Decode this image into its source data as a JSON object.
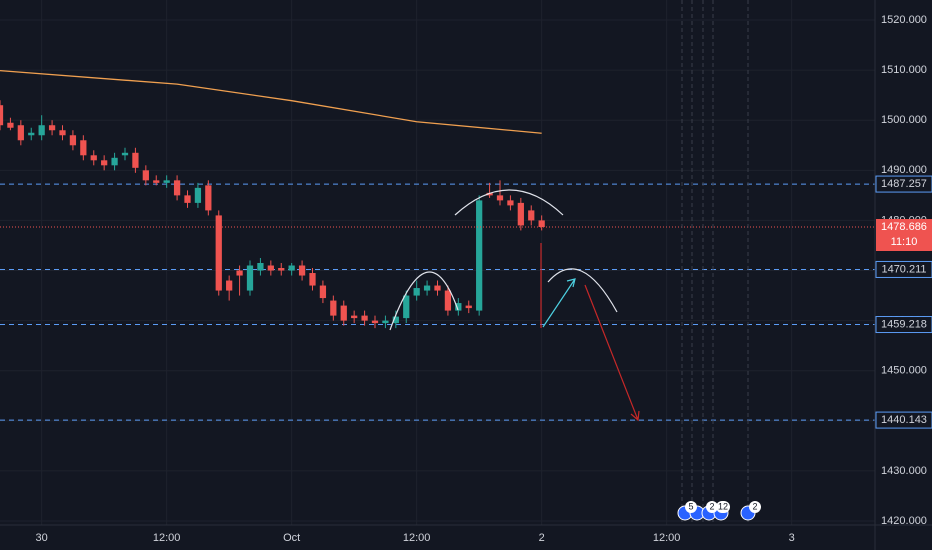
{
  "chart_data": {
    "type": "candlestick",
    "x": [
      -4,
      -3,
      -2,
      -1,
      0,
      1,
      2,
      3,
      4,
      5,
      6,
      7,
      8,
      9,
      10,
      11,
      12,
      13,
      14,
      15,
      16,
      17,
      18,
      19,
      20,
      21,
      22,
      23,
      24,
      25,
      26,
      27,
      28,
      29,
      30,
      31,
      32,
      33,
      34,
      35,
      36,
      37,
      38,
      39,
      40,
      41,
      42,
      43,
      44,
      45,
      46,
      47,
      48
    ],
    "open": [
      1503,
      1499.5,
      1499,
      1497,
      1497,
      1499,
      1498,
      1497,
      1496,
      1493,
      1492,
      1491,
      1493,
      1493.5,
      1490,
      1488,
      1487.5,
      1488,
      1485,
      1483.5,
      1487,
      1481,
      1468,
      1470,
      1466,
      1470,
      1471,
      1470.5,
      1470,
      1471,
      1469.5,
      1467,
      1464,
      1463,
      1461,
      1461,
      1460,
      1459.5,
      1459.5,
      1460.5,
      1465,
      1466,
      1467,
      1466,
      1462,
      1463,
      1462,
      1485.5,
      1485,
      1484,
      1483.5,
      1482,
      1480
    ],
    "high": [
      1504,
      1500.5,
      1500,
      1498.5,
      1501,
      1500,
      1499,
      1498,
      1497,
      1494,
      1493,
      1493.5,
      1494.5,
      1494.5,
      1491,
      1489,
      1489,
      1489,
      1486,
      1487.5,
      1488,
      1482,
      1469,
      1471,
      1472,
      1472.5,
      1472,
      1471.5,
      1471.5,
      1472,
      1470.5,
      1468,
      1465,
      1464,
      1462,
      1462,
      1461,
      1461,
      1462,
      1466,
      1468,
      1468,
      1468,
      1467,
      1464.5,
      1464,
      1485,
      1487.5,
      1488,
      1485,
      1484.5,
      1483,
      1481
    ],
    "low": [
      1498,
      1498,
      1495,
      1496,
      1496,
      1497,
      1496,
      1494,
      1492,
      1491,
      1490,
      1490,
      1492,
      1489.5,
      1487,
      1487,
      1486.5,
      1484,
      1482.5,
      1482.5,
      1481,
      1465,
      1464,
      1465,
      1465,
      1469,
      1469,
      1469,
      1469,
      1468,
      1466,
      1463.5,
      1460,
      1459,
      1459.5,
      1459,
      1458.5,
      1458.5,
      1458.5,
      1459.5,
      1464,
      1465,
      1465,
      1461,
      1461,
      1461.5,
      1461,
      1484.5,
      1483,
      1482,
      1478,
      1479,
      1478
    ],
    "close": [
      1499,
      1498.5,
      1496,
      1497.5,
      1499,
      1498,
      1497,
      1495,
      1493,
      1492,
      1491,
      1492.5,
      1493.5,
      1490.5,
      1488,
      1487.5,
      1488,
      1485,
      1483.5,
      1486.5,
      1482,
      1466,
      1466,
      1469,
      1471,
      1471.5,
      1470,
      1470,
      1471,
      1469,
      1467,
      1464.5,
      1461,
      1460,
      1460.5,
      1460,
      1459.5,
      1460,
      1460.8,
      1465,
      1466.5,
      1467,
      1466,
      1462,
      1463.5,
      1462.5,
      1484,
      1485,
      1484,
      1483,
      1479,
      1480,
      1478.686
    ],
    "ma_x": [
      -4,
      13,
      24,
      36,
      48
    ],
    "ma": [
      1509.9,
      1507.2,
      1503.9,
      1499.7,
      1497.4
    ],
    "ma_color": "#f0a050",
    "up_color": "#26a69a",
    "down_color": "#ef5350",
    "price_lines": [
      1487.257,
      1470.211,
      1459.218,
      1440.143
    ],
    "last_price": 1478.686,
    "countdown": "11:10",
    "events": [
      "5",
      "2",
      "12",
      "2"
    ],
    "xlim": [
      -4,
      80
    ],
    "ylim": [
      1419.2,
      1524
    ],
    "xticks": [
      {
        "value": 0,
        "label": "30"
      },
      {
        "value": 12,
        "label": "12:00"
      },
      {
        "value": 24,
        "label": "Oct"
      },
      {
        "value": 36,
        "label": "12:00"
      },
      {
        "value": 48,
        "label": "2"
      },
      {
        "value": 60,
        "label": "12:00"
      },
      {
        "value": 72,
        "label": "3"
      }
    ],
    "yticks": [
      {
        "value": 1420,
        "label": "1420.000"
      },
      {
        "value": 1430,
        "label": "1430.000"
      },
      {
        "value": 1440,
        "label": "1440.000"
      },
      {
        "value": 1450,
        "label": "1450.000"
      },
      {
        "value": 1460,
        "label": "1460.000"
      },
      {
        "value": 1470,
        "label": "1470.000"
      },
      {
        "value": 1480,
        "label": "1480.000"
      },
      {
        "value": 1490,
        "label": "1490.000"
      },
      {
        "value": 1500,
        "label": "1500.000"
      },
      {
        "value": 1510,
        "label": "1510.000"
      },
      {
        "value": 1520,
        "label": "1520.000"
      }
    ],
    "grid": true
  }
}
